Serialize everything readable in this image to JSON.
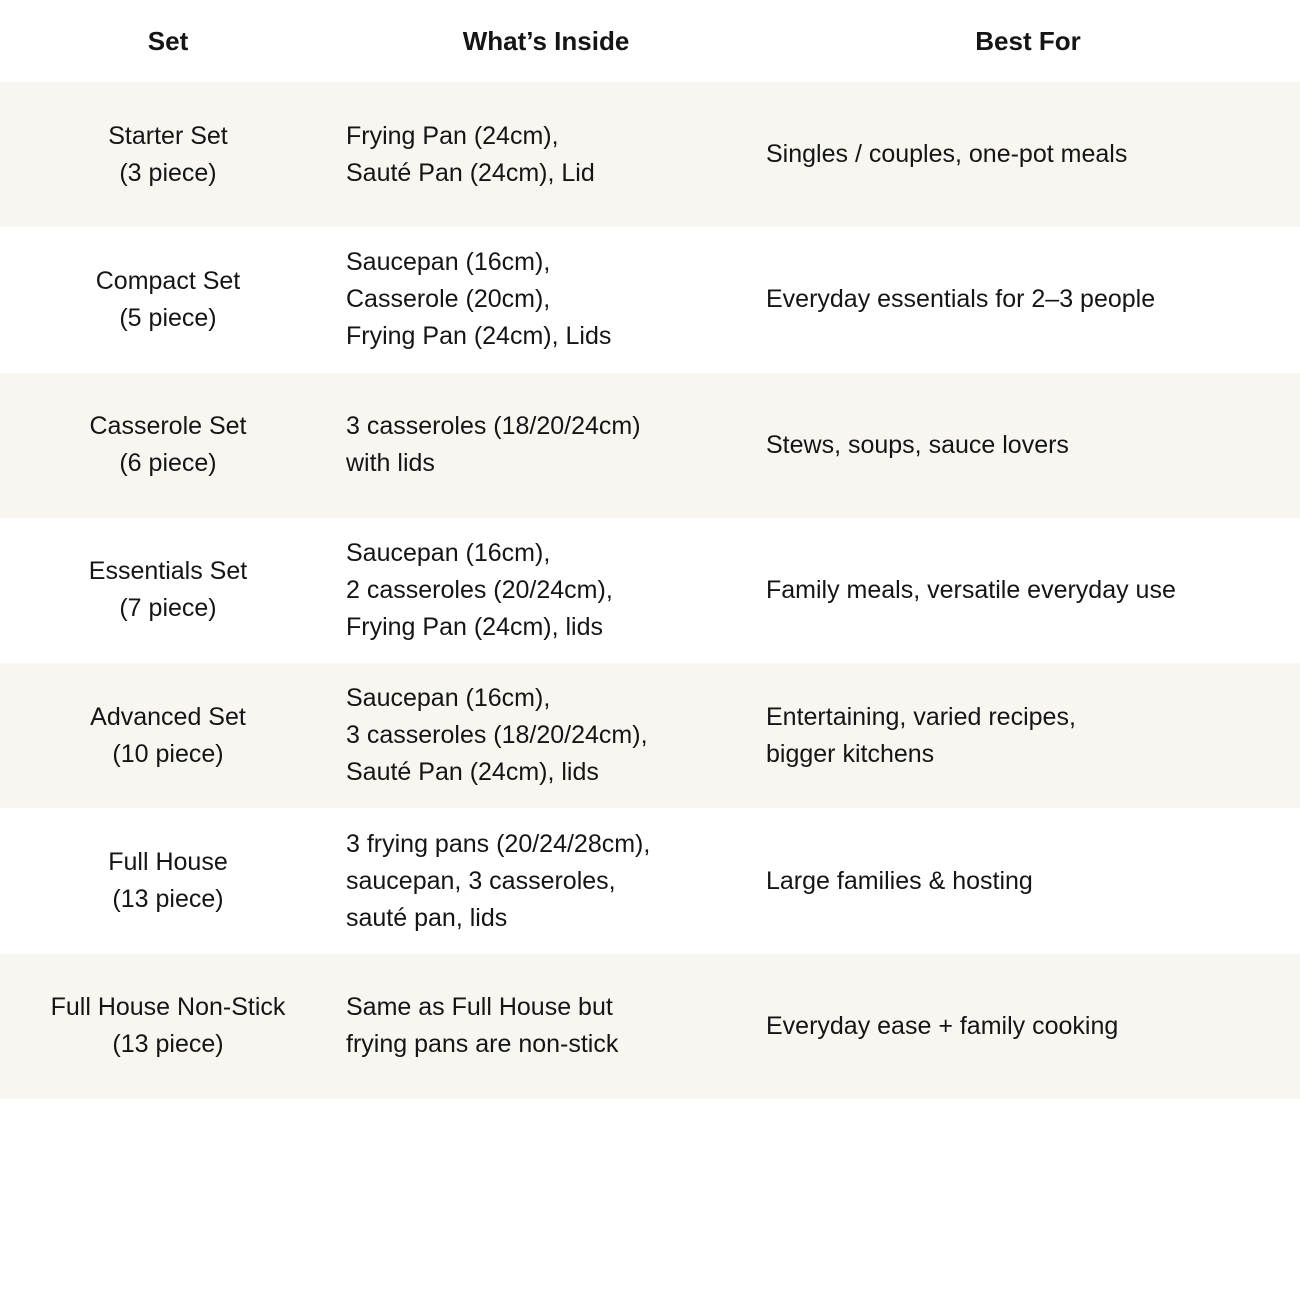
{
  "headers": {
    "set": "Set",
    "inside": "What’s Inside",
    "best": "Best For"
  },
  "colors": {
    "row_shade": "#f8f6f1",
    "text": "#151515"
  },
  "rows": [
    {
      "set": "Starter Set\n(3 piece)",
      "inside": "Frying Pan (24cm),\nSauté Pan (24cm), Lid",
      "best": "Singles / couples, one-pot meals"
    },
    {
      "set": "Compact Set\n(5 piece)",
      "inside": "Saucepan (16cm),\nCasserole (20cm),\nFrying Pan (24cm), Lids",
      "best": "Everyday essentials for 2–3 people"
    },
    {
      "set": "Casserole Set\n(6 piece)",
      "inside": "3 casseroles (18/20/24cm)\nwith lids",
      "best": "Stews, soups, sauce lovers"
    },
    {
      "set": "Essentials Set\n(7 piece)",
      "inside": "Saucepan (16cm),\n2 casseroles (20/24cm),\nFrying Pan (24cm), lids",
      "best": "Family meals, versatile everyday use"
    },
    {
      "set": "Advanced Set\n(10 piece)",
      "inside": "Saucepan (16cm),\n3 casseroles (18/20/24cm),\nSauté Pan (24cm), lids",
      "best": "Entertaining, varied recipes,\nbigger kitchens"
    },
    {
      "set": "Full House\n(13 piece)",
      "inside": "3 frying pans (20/24/28cm),\nsaucepan, 3 casseroles,\nsauté pan, lids",
      "best": "Large families & hosting"
    },
    {
      "set": "Full House Non-Stick\n(13 piece)",
      "inside": "Same as Full House but\nfrying pans are non-stick",
      "best": "Everyday ease + family cooking"
    }
  ]
}
